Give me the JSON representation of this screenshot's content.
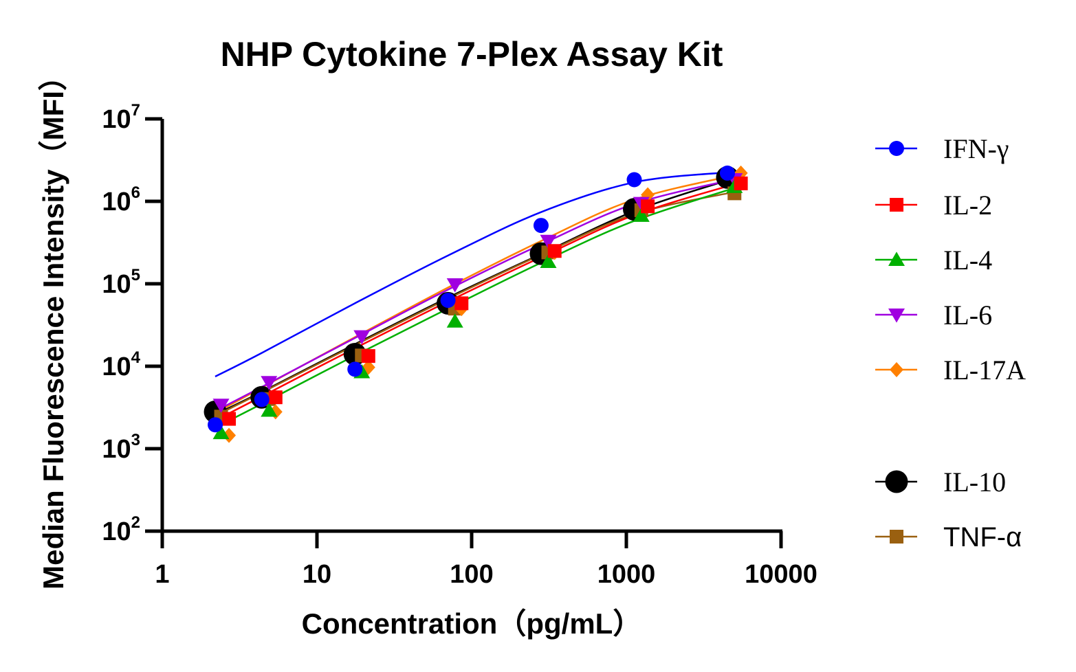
{
  "chart_data": {
    "type": "scatter",
    "title": "NHP Cytokine 7-Plex Assay Kit",
    "xlabel": "Concentration（pg/mL）",
    "ylabel": "Median Fluorescence Intensity（MFI）",
    "xscale": "log",
    "yscale": "log",
    "xlim": [
      1,
      10000
    ],
    "ylim": [
      100,
      10000000
    ],
    "x_ticks": [
      "1",
      "10",
      "100",
      "1000",
      "10000"
    ],
    "y_ticks": [
      {
        "base": "10",
        "exp": "2"
      },
      {
        "base": "10",
        "exp": "3"
      },
      {
        "base": "10",
        "exp": "4"
      },
      {
        "base": "10",
        "exp": "5"
      },
      {
        "base": "10",
        "exp": "6"
      },
      {
        "base": "10",
        "exp": "7"
      }
    ],
    "legend_position": "right",
    "series": [
      {
        "name": "IFN-γ",
        "color": "#0000ff",
        "marker": "circle",
        "x": [
          2.2,
          4.4,
          17.6,
          70.3,
          281,
          1125,
          4500
        ],
        "y": [
          1950,
          3950,
          9200,
          63000,
          510000,
          1830000,
          2200000
        ],
        "fit": [
          [
            2.2,
            7500
          ],
          [
            4.4,
            14500
          ],
          [
            17.6,
            58000
          ],
          [
            70.3,
            220000
          ],
          [
            281,
            740000
          ],
          [
            1125,
            1700000
          ],
          [
            4500,
            2250000
          ]
        ]
      },
      {
        "name": "IL-2",
        "color": "#ff0000",
        "marker": "square",
        "x": [
          2.7,
          5.4,
          21.5,
          86,
          344,
          1375,
          5500
        ],
        "y": [
          2300,
          4200,
          13300,
          58000,
          250000,
          870000,
          1650000
        ],
        "fit": [
          [
            2.2,
            2200
          ],
          [
            4.4,
            4300
          ],
          [
            17.6,
            16500
          ],
          [
            70.3,
            61000
          ],
          [
            281,
            210000
          ],
          [
            1125,
            680000
          ],
          [
            5500,
            1700000
          ]
        ]
      },
      {
        "name": "IL-4",
        "color": "#00b000",
        "marker": "triangle-up",
        "x": [
          2.4,
          4.9,
          19.5,
          78,
          313,
          1250,
          5000
        ],
        "y": [
          1550,
          2900,
          8500,
          35000,
          185000,
          670000,
          1500000
        ],
        "fit": [
          [
            2.2,
            1800
          ],
          [
            4.4,
            3500
          ],
          [
            17.6,
            13500
          ],
          [
            70.3,
            50000
          ],
          [
            281,
            180000
          ],
          [
            1125,
            580000
          ],
          [
            5000,
            1450000
          ]
        ]
      },
      {
        "name": "IL-6",
        "color": "#a000e0",
        "marker": "triangle-down",
        "x": [
          2.4,
          4.9,
          19.5,
          78,
          313,
          1250,
          5000
        ],
        "y": [
          3400,
          6400,
          23000,
          98000,
          330000,
          950000,
          1850000
        ],
        "fit": [
          [
            2.2,
            2850
          ],
          [
            4.4,
            5600
          ],
          [
            17.6,
            22000
          ],
          [
            70.3,
            85000
          ],
          [
            281,
            300000
          ],
          [
            1125,
            930000
          ],
          [
            5000,
            1850000
          ]
        ]
      },
      {
        "name": "IL-17A",
        "color": "#ff8000",
        "marker": "diamond",
        "x": [
          2.7,
          5.4,
          21.5,
          86,
          344,
          1375,
          5500
        ],
        "y": [
          1450,
          2800,
          9700,
          50000,
          240000,
          1200000,
          2200000
        ],
        "fit": [
          [
            2.2,
            2700
          ],
          [
            4.4,
            5500
          ],
          [
            17.6,
            22500
          ],
          [
            70.3,
            90000
          ],
          [
            281,
            330000
          ],
          [
            1125,
            1050000
          ],
          [
            5500,
            2150000
          ]
        ]
      },
      {
        "name": "IL-10",
        "color": "#000000",
        "marker": "circle",
        "x": [
          2.2,
          4.4,
          17.6,
          70.3,
          281,
          1125,
          4500
        ],
        "y": [
          2800,
          4200,
          14000,
          58000,
          232000,
          800000,
          1950000
        ],
        "fit": [
          [
            2.2,
            2600
          ],
          [
            4.4,
            4900
          ],
          [
            17.6,
            18500
          ],
          [
            70.3,
            68000
          ],
          [
            281,
            230000
          ],
          [
            1125,
            760000
          ],
          [
            4500,
            1800000
          ]
        ]
      },
      {
        "name": "TNF-α",
        "color": "#9a6010",
        "marker": "square",
        "x": [
          2.4,
          4.9,
          19.5,
          78,
          313,
          1250,
          5000
        ],
        "y": [
          2450,
          4000,
          13500,
          50000,
          240000,
          780000,
          1250000
        ],
        "fit": [
          [
            2.2,
            2500
          ],
          [
            4.4,
            4800
          ],
          [
            17.6,
            18000
          ],
          [
            70.3,
            66000
          ],
          [
            281,
            225000
          ],
          [
            1125,
            700000
          ],
          [
            5000,
            1300000
          ]
        ]
      }
    ]
  },
  "legend": {
    "items": [
      {
        "label": "IFN-γ",
        "font": "serif"
      },
      {
        "label": "IL-2",
        "font": "serif"
      },
      {
        "label": "IL-4",
        "font": "serif"
      },
      {
        "label": "IL-6",
        "font": "serif"
      },
      {
        "label": "IL-17A",
        "font": "serif"
      },
      {
        "label": "IL-10",
        "font": "serif"
      },
      {
        "label": "TNF-α",
        "font": "sans"
      }
    ]
  }
}
